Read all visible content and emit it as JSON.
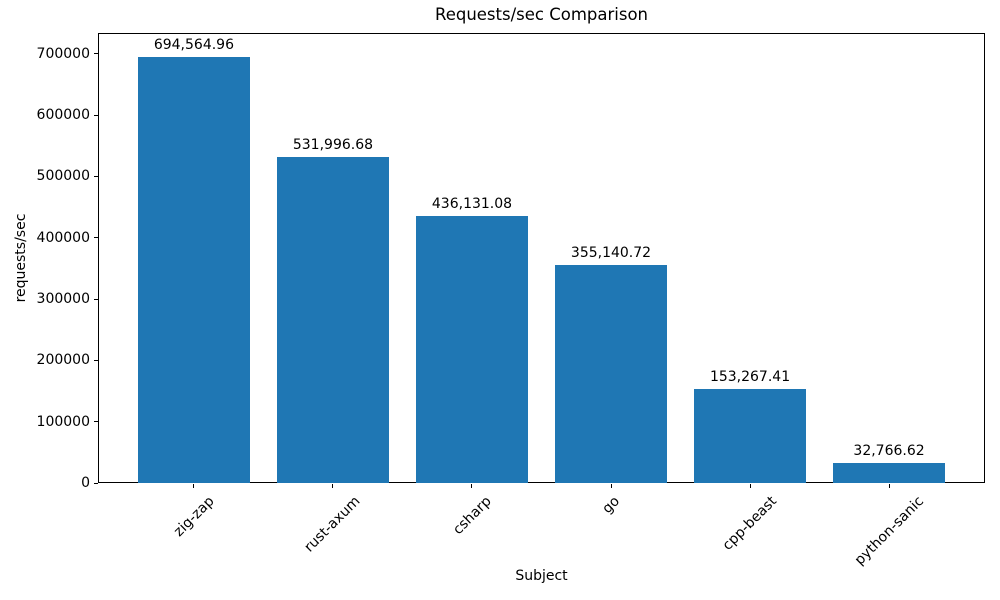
{
  "chart_data": {
    "type": "bar",
    "title": "Requests/sec Comparison",
    "xlabel": "Subject",
    "ylabel": "requests/sec",
    "categories": [
      "zig-zap",
      "rust-axum",
      "csharp",
      "go",
      "cpp-beast",
      "python-sanic"
    ],
    "values": [
      694564.96,
      531996.68,
      436131.08,
      355140.72,
      153267.41,
      32766.62
    ],
    "value_labels": [
      "694,564.96",
      "531,996.68",
      "436,131.08",
      "355,140.72",
      "153,267.41",
      "32,766.62"
    ],
    "series": [
      {
        "name": "requests/sec",
        "values": [
          694564.96,
          531996.68,
          436131.08,
          355140.72,
          153267.41,
          32766.62
        ]
      }
    ],
    "bar_color": "#1f77b4",
    "text_color": "#000000",
    "yticks": [
      0,
      100000,
      200000,
      300000,
      400000,
      500000,
      600000,
      700000
    ],
    "ytick_labels": [
      "0",
      "100000",
      "200000",
      "300000",
      "400000",
      "500000",
      "600000",
      "700000"
    ],
    "ylim": [
      0,
      734000
    ],
    "x_tick_rotation_deg": 45,
    "grid": false,
    "legend_position": "none"
  }
}
